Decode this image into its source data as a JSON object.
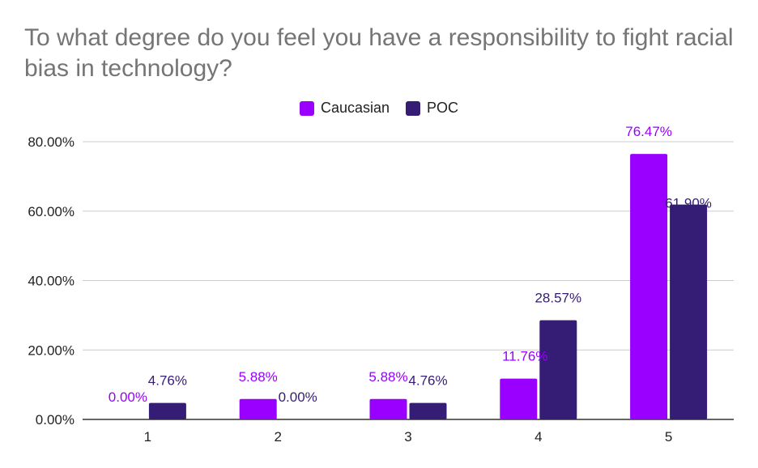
{
  "chart_data": {
    "type": "bar",
    "title": "To what degree do you feel you have a responsibility to fight racial bias in technology?",
    "xlabel": "",
    "ylabel": "",
    "categories": [
      "1",
      "2",
      "3",
      "4",
      "5"
    ],
    "series": [
      {
        "name": "Caucasian",
        "color": "#9900ff",
        "values": [
          0.0,
          5.88,
          5.88,
          11.76,
          76.47
        ],
        "labels": [
          "0.00%",
          "5.88%",
          "5.88%",
          "11.76%",
          "76.47%"
        ]
      },
      {
        "name": "POC",
        "color": "#351c75",
        "values": [
          4.76,
          0.0,
          4.76,
          28.57,
          61.9
        ],
        "labels": [
          "4.76%",
          "0.00%",
          "4.76%",
          "28.57%",
          "61.90%"
        ]
      }
    ],
    "ylim": [
      0,
      80
    ],
    "yticks": [
      0,
      20,
      40,
      60,
      80
    ],
    "ytick_labels": [
      "0.00%",
      "20.00%",
      "40.00%",
      "60.00%",
      "80.00%"
    ],
    "legend_position": "top-center",
    "grid": true
  }
}
